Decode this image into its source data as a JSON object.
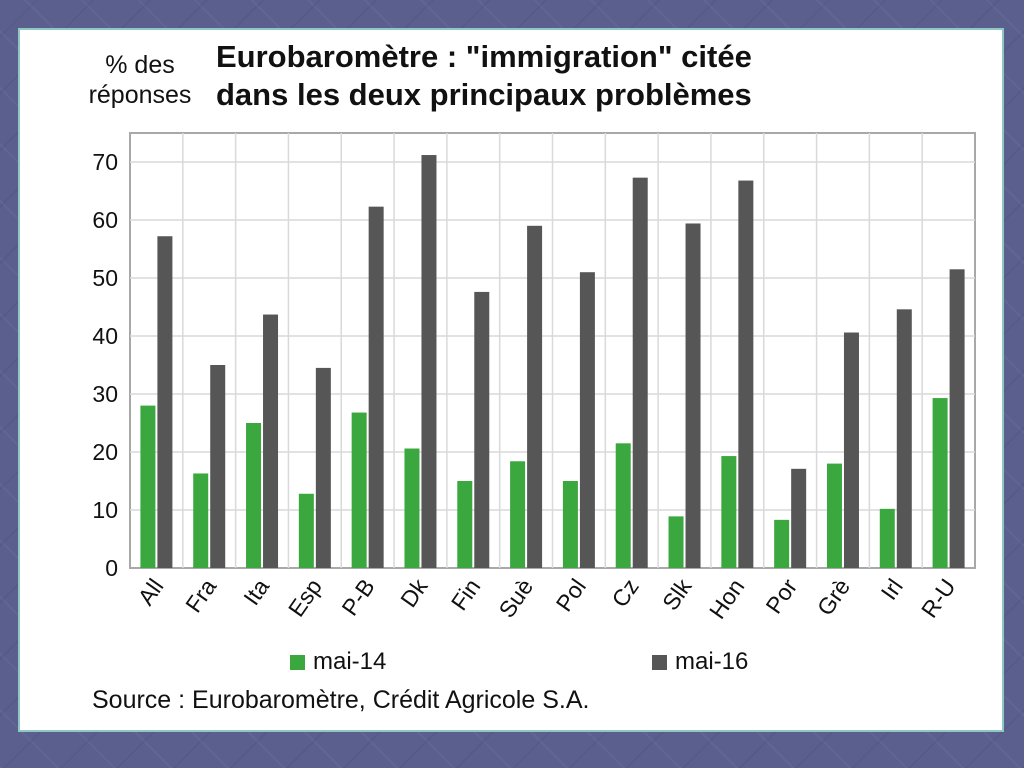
{
  "slide": {
    "frame_color": "#8fc7c4",
    "background_color": "#5b5f8e"
  },
  "chart_data": {
    "type": "bar",
    "title": "Eurobaromètre : \"immigration\" citée\ndans les deux principaux problèmes",
    "ylabel_line1": "% des",
    "ylabel_line2": "réponses",
    "xlabel": "",
    "ylim": [
      0,
      75
    ],
    "yticks": [
      0,
      10,
      20,
      30,
      40,
      50,
      60,
      70
    ],
    "grid": true,
    "legend_position": "bottom",
    "categories": [
      "All",
      "Fra",
      "Ita",
      "Esp",
      "P-B",
      "Dk",
      "Fin",
      "Suè",
      "Pol",
      "Cz",
      "Slk",
      "Hon",
      "Por",
      "Grè",
      "Irl",
      "R-U"
    ],
    "series": [
      {
        "name": "mai-14",
        "color": "#3aa83e",
        "values": [
          28,
          16.3,
          25,
          12.8,
          26.8,
          20.6,
          15,
          18.4,
          15,
          21.5,
          8.9,
          19.3,
          8.3,
          18,
          10.2,
          29.3
        ]
      },
      {
        "name": "mai-16",
        "color": "#565656",
        "values": [
          57.2,
          35,
          43.7,
          34.5,
          62.3,
          71.2,
          47.6,
          59,
          51,
          67.3,
          59.4,
          66.8,
          17.1,
          40.6,
          44.6,
          51.5
        ]
      }
    ],
    "source": "Source : Eurobaromètre, Crédit Agricole S.A."
  }
}
